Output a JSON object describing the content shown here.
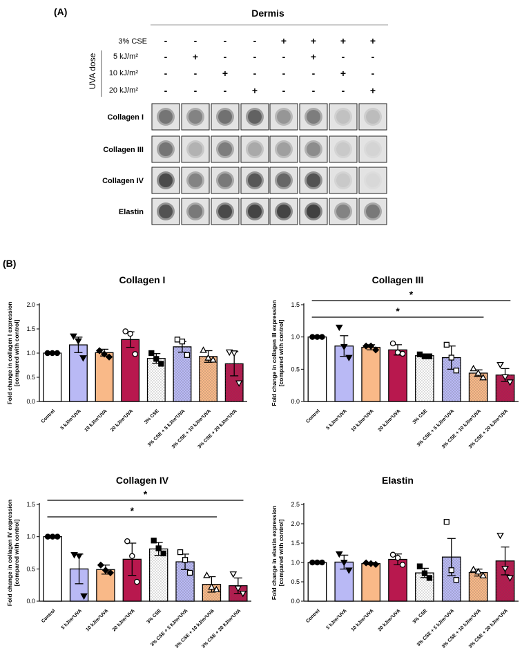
{
  "panel_a": {
    "label": "(A)",
    "title": "Dermis",
    "cse_label": "3% CSE",
    "uva_axis_label": "UVA dose",
    "cse_row": [
      "-",
      "-",
      "-",
      "-",
      "+",
      "+",
      "+",
      "+"
    ],
    "dose_rows": [
      {
        "label": "5 kJ/m²",
        "signs": [
          "-",
          "+",
          "-",
          "-",
          "-",
          "+",
          "-",
          "-"
        ]
      },
      {
        "label": "10 kJ/m²",
        "signs": [
          "-",
          "-",
          "+",
          "-",
          "-",
          "-",
          "+",
          "-"
        ]
      },
      {
        "label": "20 kJ/m²",
        "signs": [
          "-",
          "-",
          "-",
          "+",
          "-",
          "-",
          "-",
          "+"
        ]
      }
    ],
    "blots": [
      {
        "label": "Collagen I",
        "intensity": [
          0.62,
          0.55,
          0.64,
          0.72,
          0.45,
          0.58,
          0.22,
          0.25
        ]
      },
      {
        "label": "Collagen III",
        "intensity": [
          0.62,
          0.3,
          0.58,
          0.35,
          0.4,
          0.5,
          0.18,
          0.12
        ]
      },
      {
        "label": "Collagen IV",
        "intensity": [
          0.85,
          0.55,
          0.6,
          0.78,
          0.7,
          0.8,
          0.18,
          0.1
        ]
      },
      {
        "label": "Elastin",
        "intensity": [
          0.8,
          0.6,
          0.85,
          0.88,
          0.88,
          0.9,
          0.55,
          0.6
        ]
      }
    ]
  },
  "panel_b": {
    "label": "(B)",
    "group_labels_1": [
      "Control",
      "5 kJ/m²UVA",
      "10 kJ/m²UVA",
      "20 kJ/m²UVA",
      "3% CSE",
      "3% CSE + 5 kJ/m²UVA",
      "3% CSE + 10 kJ/m²UVA",
      "3% CSE + 20 kJ/m²UVA"
    ],
    "group_labels_2": [
      "Control",
      "5 kJ/m²UVA",
      "10 kJ/m²UVA",
      "20 kJ/m²UVA",
      "3% CSE",
      "3% CSE + 5 kJ/m²UVA",
      "3% CSE + 10 kJ/m²UVA",
      "3% CSE + 20 kJ/m²UVA"
    ],
    "group_labels_3": [
      "Control",
      "5 kJ/m²UVA",
      "10 kJ/m²UVA",
      "20 kJ/m²UVA",
      "3% CSE",
      "3% CSE + 5 kJ/m²UVA",
      "3% CSE + 10 kJ/m²UVA",
      "3% CSE + 20 kJ/m²UVA"
    ],
    "group_labels_4": [
      "Control",
      "5 kJ/m²UVA",
      "10 kJ/m²UVA",
      "20 kJ/m²UVA",
      "3% CSE",
      "3% CSE + 5 kJ/m²UVA",
      "3% CSE + 10 kJ/m²UVA",
      "3% CSE + 20 kJ/m²UVA"
    ]
  },
  "chart_data": [
    {
      "type": "bar",
      "title": "Collagen I",
      "ylabel": "Fold change in collagen I expression [compared with control]",
      "ylim": [
        0,
        2.0
      ],
      "yticks": [
        "0.0",
        "0.5",
        "1.0",
        "1.5",
        "2.0"
      ],
      "values": [
        1.0,
        1.17,
        1.01,
        1.28,
        0.89,
        1.13,
        0.93,
        0.78
      ],
      "errors": [
        0.0,
        0.16,
        0.07,
        0.16,
        0.1,
        0.11,
        0.12,
        0.25
      ],
      "points": [
        [
          1.0,
          1.0,
          1.0
        ],
        [
          1.35,
          1.25,
          0.9
        ],
        [
          1.05,
          0.98,
          0.92
        ],
        [
          1.45,
          1.4,
          0.98
        ],
        [
          1.0,
          0.88,
          0.78
        ],
        [
          1.28,
          1.24,
          0.96
        ],
        [
          1.06,
          0.9,
          0.86
        ],
        [
          1.02,
          1.0,
          0.38
        ]
      ],
      "significance": []
    },
    {
      "type": "bar",
      "title": "Collagen III",
      "ylabel": "Fold change in collagen III expression [compared with control]",
      "ylim": [
        0,
        1.5
      ],
      "yticks": [
        "0.0",
        "0.5",
        "1.0",
        "1.5"
      ],
      "values": [
        1.0,
        0.86,
        0.84,
        0.8,
        0.71,
        0.68,
        0.44,
        0.41
      ],
      "errors": [
        0.0,
        0.16,
        0.04,
        0.08,
        0.02,
        0.18,
        0.05,
        0.1
      ],
      "points": [
        [
          1.0,
          1.0,
          1.0
        ],
        [
          1.15,
          0.85,
          0.68
        ],
        [
          0.86,
          0.86,
          0.8
        ],
        [
          0.9,
          0.76,
          0.74
        ],
        [
          0.73,
          0.7,
          0.7
        ],
        [
          0.88,
          0.68,
          0.48
        ],
        [
          0.51,
          0.44,
          0.37
        ],
        [
          0.57,
          0.38,
          0.3
        ]
      ],
      "significance": [
        {
          "from": "Control",
          "to": "3% CSE + 20 kJ/m²UVA",
          "text": "*"
        },
        {
          "from": "Control",
          "to": "3% CSE + 10 kJ/m²UVA",
          "text": "*"
        }
      ]
    },
    {
      "type": "bar",
      "title": "Collagen IV",
      "ylabel": "Fold change in collagen IV expression [compared with control]",
      "ylim": [
        0,
        1.5
      ],
      "yticks": [
        "0.0",
        "0.5",
        "1.0",
        "1.5"
      ],
      "values": [
        1.0,
        0.5,
        0.49,
        0.65,
        0.81,
        0.61,
        0.26,
        0.24
      ],
      "errors": [
        0.0,
        0.23,
        0.07,
        0.25,
        0.1,
        0.12,
        0.12,
        0.12
      ],
      "points": [
        [
          1.0,
          1.0,
          1.0
        ],
        [
          0.72,
          0.7,
          0.08
        ],
        [
          0.56,
          0.48,
          0.44
        ],
        [
          0.93,
          0.7,
          0.3
        ],
        [
          0.94,
          0.82,
          0.74
        ],
        [
          0.76,
          0.64,
          0.44
        ],
        [
          0.4,
          0.22,
          0.18
        ],
        [
          0.42,
          0.2,
          0.12
        ]
      ],
      "significance": [
        {
          "from": "Control",
          "to": "3% CSE + 20 kJ/m²UVA",
          "text": "*"
        },
        {
          "from": "Control",
          "to": "3% CSE + 10 kJ/m²UVA",
          "text": "*"
        }
      ]
    },
    {
      "type": "bar",
      "title": "Elastin",
      "ylabel": "Fold change in elastin expression [compared with control]",
      "ylim": [
        0,
        2.5
      ],
      "yticks": [
        "0.0",
        "0.5",
        "1.0",
        "1.5",
        "2.0",
        "2.5"
      ],
      "values": [
        1.0,
        1.01,
        0.97,
        1.08,
        0.73,
        1.14,
        0.74,
        1.04
      ],
      "errors": [
        0.0,
        0.18,
        0.03,
        0.14,
        0.12,
        0.48,
        0.09,
        0.36
      ],
      "points": [
        [
          1.0,
          1.0,
          1.0
        ],
        [
          1.22,
          1.0,
          0.8
        ],
        [
          0.99,
          0.97,
          0.95
        ],
        [
          1.2,
          1.12,
          0.94
        ],
        [
          0.9,
          0.72,
          0.6
        ],
        [
          2.05,
          0.8,
          0.55
        ],
        [
          0.82,
          0.76,
          0.66
        ],
        [
          1.7,
          0.84,
          0.6
        ]
      ],
      "significance": []
    }
  ],
  "colors": {
    "bars": [
      "#ffffff",
      "#b9b9f5",
      "#f9b988",
      "#b8184e",
      "#ffffff",
      "#b9b9f5",
      "#f9b988",
      "#b8184e"
    ],
    "hatched": [
      false,
      false,
      false,
      false,
      true,
      true,
      true,
      true
    ]
  },
  "markers": [
    "circle-filled",
    "triangle-down-filled",
    "diamond-filled",
    "circle-open",
    "square-filled",
    "square-open",
    "triangle-up-open",
    "triangle-down-open"
  ]
}
